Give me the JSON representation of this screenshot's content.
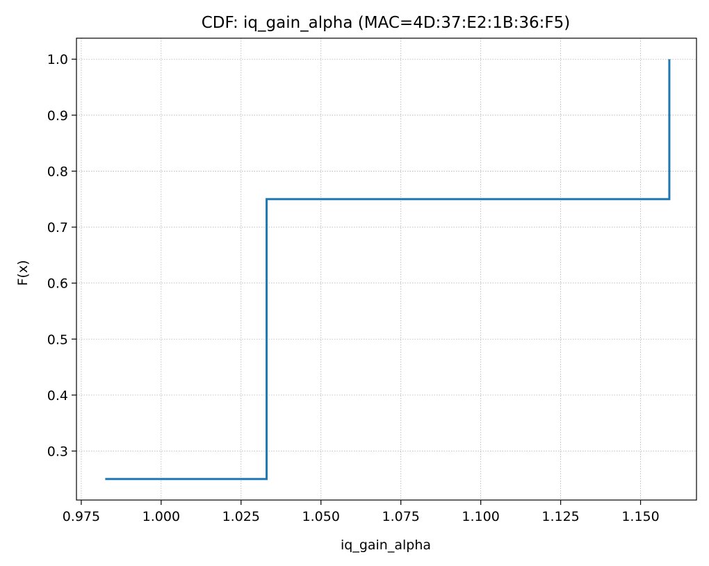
{
  "chart_data": {
    "type": "line",
    "drawstyle": "steps-post",
    "title": "CDF: iq_gain_alpha (MAC=4D:37:E2:1B:36:F5)",
    "xlabel": "iq_gain_alpha",
    "ylabel": "F(x)",
    "xlim": [
      0.9735,
      1.1675
    ],
    "ylim": [
      0.2125,
      1.0375
    ],
    "xticks": [
      0.975,
      1.0,
      1.025,
      1.05,
      1.075,
      1.1,
      1.125,
      1.15
    ],
    "xtick_labels": [
      "0.975",
      "1.000",
      "1.025",
      "1.050",
      "1.075",
      "1.100",
      "1.125",
      "1.150"
    ],
    "yticks": [
      0.3,
      0.4,
      0.5,
      0.6,
      0.7,
      0.8,
      0.9,
      1.0
    ],
    "ytick_labels": [
      "0.3",
      "0.4",
      "0.5",
      "0.6",
      "0.7",
      "0.8",
      "0.9",
      "1.0"
    ],
    "grid": true,
    "series": [
      {
        "name": "CDF",
        "color": "#1f77b4",
        "x": [
          0.9825,
          1.033,
          1.033,
          1.159,
          1.159
        ],
        "y": [
          0.25,
          0.25,
          0.75,
          0.75,
          1.0
        ]
      }
    ]
  }
}
